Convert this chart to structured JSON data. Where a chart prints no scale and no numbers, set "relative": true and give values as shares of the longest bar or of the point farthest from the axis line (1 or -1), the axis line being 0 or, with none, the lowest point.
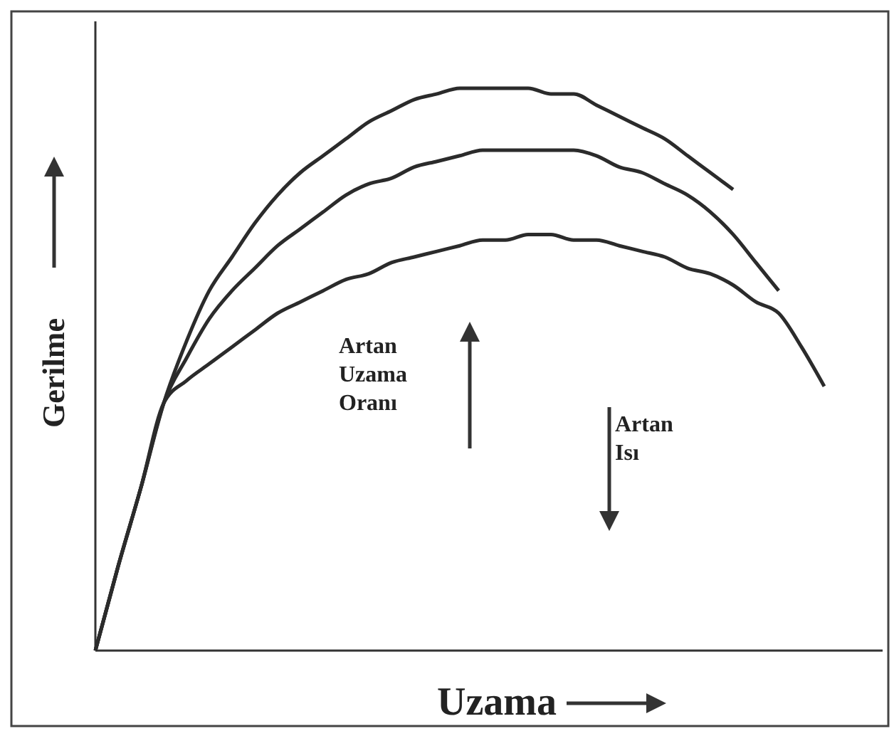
{
  "chart_data": {
    "type": "line",
    "relative": true,
    "xlabel": "Uzama",
    "ylabel": "Gerilme",
    "categories": [
      null,
      null,
      null,
      null,
      null,
      null,
      null,
      null,
      null,
      null,
      null,
      null,
      null,
      null,
      null,
      null,
      null,
      null,
      null,
      null,
      null,
      null,
      null,
      null,
      null,
      null,
      null,
      null,
      null,
      null,
      null,
      null,
      null
    ],
    "series": [
      {
        "color": "#2b2b2b",
        "values": [
          0,
          0.15,
          0.29,
          0.44,
          0.55,
          0.64,
          0.7,
          0.76,
          0.81,
          0.85,
          0.88,
          0.91,
          0.94,
          0.96,
          0.98,
          0.99,
          1,
          1,
          1,
          1,
          0.99,
          0.99,
          0.97,
          0.95,
          0.93,
          0.91,
          0.88,
          0.85,
          0.82,
          null,
          null,
          null,
          null
        ]
      },
      {
        "color": "#2b2b2b",
        "values": [
          0,
          0.15,
          0.29,
          0.44,
          0.52,
          0.59,
          0.64,
          0.68,
          0.72,
          0.75,
          0.78,
          0.81,
          0.83,
          0.84,
          0.86,
          0.87,
          0.88,
          0.89,
          0.89,
          0.89,
          0.89,
          0.89,
          0.88,
          0.86,
          0.85,
          0.83,
          0.81,
          0.78,
          0.74,
          0.69,
          0.64,
          null,
          null
        ]
      },
      {
        "color": "#2b2b2b",
        "values": [
          0,
          0.15,
          0.29,
          0.44,
          0.48,
          0.51,
          0.54,
          0.57,
          0.6,
          0.62,
          0.64,
          0.66,
          0.67,
          0.69,
          0.7,
          0.71,
          0.72,
          0.73,
          0.73,
          0.74,
          0.74,
          0.73,
          0.73,
          0.72,
          0.71,
          0.7,
          0.68,
          0.67,
          0.65,
          0.62,
          0.6,
          0.54,
          0.47
        ]
      }
    ],
    "annotations": [
      "Artan\nUzama\nOranı",
      "Artan\nIsı"
    ],
    "grid": false,
    "line_style": "solid",
    "marker": "none"
  }
}
